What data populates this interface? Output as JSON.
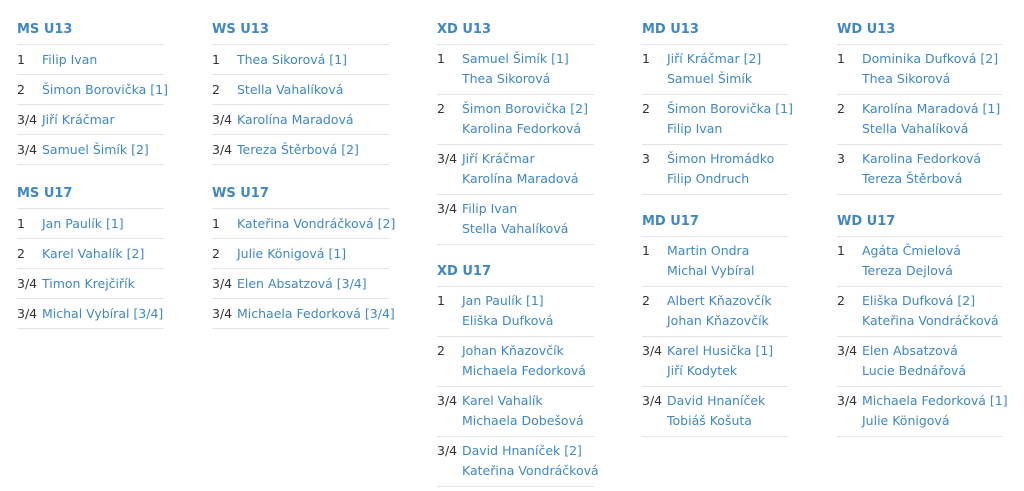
{
  "columns": [
    {
      "sections": [
        {
          "title": "MS U13",
          "rows": [
            {
              "rank": "1",
              "names": [
                "Filip Ivan"
              ]
            },
            {
              "rank": "2",
              "names": [
                "Šimon Borovička [1]"
              ]
            },
            {
              "rank": "3/4",
              "names": [
                "Jiří Kráčmar"
              ]
            },
            {
              "rank": "3/4",
              "names": [
                "Samuel Šimík [2]"
              ]
            }
          ]
        },
        {
          "title": "MS U17",
          "rows": [
            {
              "rank": "1",
              "names": [
                "Jan Paulík [1]"
              ]
            },
            {
              "rank": "2",
              "names": [
                "Karel Vahalík [2]"
              ]
            },
            {
              "rank": "3/4",
              "names": [
                "Timon Krejčiřík"
              ]
            },
            {
              "rank": "3/4",
              "names": [
                "Michal Vybíral [3/4]"
              ]
            }
          ]
        }
      ]
    },
    {
      "sections": [
        {
          "title": "WS U13",
          "rows": [
            {
              "rank": "1",
              "names": [
                "Thea Sikorová [1]"
              ]
            },
            {
              "rank": "2",
              "names": [
                "Stella Vahalíková"
              ]
            },
            {
              "rank": "3/4",
              "names": [
                "Karolína Maradová"
              ]
            },
            {
              "rank": "3/4",
              "names": [
                "Tereza Štěrbová [2]"
              ]
            }
          ]
        },
        {
          "title": "WS U17",
          "rows": [
            {
              "rank": "1",
              "names": [
                "Kateřina Vondráčková [2]"
              ]
            },
            {
              "rank": "2",
              "names": [
                "Julie Königová [1]"
              ]
            },
            {
              "rank": "3/4",
              "names": [
                "Elen Absatzová [3/4]"
              ]
            },
            {
              "rank": "3/4",
              "names": [
                "Michaela Fedorková [3/4]"
              ]
            }
          ]
        }
      ]
    },
    {
      "sections": [
        {
          "title": "XD U13",
          "rows": [
            {
              "rank": "1",
              "names": [
                "Samuel Šimík [1]",
                "Thea Sikorová"
              ]
            },
            {
              "rank": "2",
              "names": [
                "Šimon Borovička [2]",
                "Karolina Fedorková"
              ]
            },
            {
              "rank": "3/4",
              "names": [
                "Jiří Kráčmar",
                "Karolína Maradová"
              ]
            },
            {
              "rank": "3/4",
              "names": [
                "Filip Ivan",
                "Stella Vahalíková"
              ]
            }
          ]
        },
        {
          "title": "XD U17",
          "rows": [
            {
              "rank": "1",
              "names": [
                "Jan Paulík [1]",
                "Eliška Dufková"
              ]
            },
            {
              "rank": "2",
              "names": [
                "Johan Kňazovčík",
                "Michaela Fedorková"
              ]
            },
            {
              "rank": "3/4",
              "names": [
                "Karel Vahalík",
                "Michaela Dobešová"
              ]
            },
            {
              "rank": "3/4",
              "names": [
                "David Hnaníček [2]",
                "Kateřina Vondráčková"
              ]
            }
          ]
        }
      ]
    },
    {
      "sections": [
        {
          "title": "MD U13",
          "rows": [
            {
              "rank": "1",
              "names": [
                "Jiří Kráčmar [2]",
                "Samuel Šimík"
              ]
            },
            {
              "rank": "2",
              "names": [
                "Šimon Borovička [1]",
                "Filip Ivan"
              ]
            },
            {
              "rank": "3",
              "names": [
                "Šimon Hromádko",
                "Filip Ondruch"
              ]
            }
          ]
        },
        {
          "title": "MD U17",
          "rows": [
            {
              "rank": "1",
              "names": [
                "Martin Ondra",
                "Michal Vybíral"
              ]
            },
            {
              "rank": "2",
              "names": [
                "Albert Kňazovčík",
                "Johan Kňazovčík"
              ]
            },
            {
              "rank": "3/4",
              "names": [
                "Karel Husička [1]",
                "Jiří Kodytek"
              ]
            },
            {
              "rank": "3/4",
              "names": [
                "David Hnaníček",
                "Tobiáš Košuta"
              ]
            }
          ]
        }
      ]
    },
    {
      "sections": [
        {
          "title": "WD U13",
          "rows": [
            {
              "rank": "1",
              "names": [
                "Dominika Dufková [2]",
                "Thea Sikorová"
              ]
            },
            {
              "rank": "2",
              "names": [
                "Karolína Maradová [1]",
                "Stella Vahalíková"
              ]
            },
            {
              "rank": "3",
              "names": [
                "Karolina Fedorková",
                "Tereza Štěrbová"
              ]
            }
          ]
        },
        {
          "title": "WD U17",
          "rows": [
            {
              "rank": "1",
              "names": [
                "Agáta Čmielová",
                "Tereza Dejlová"
              ]
            },
            {
              "rank": "2",
              "names": [
                "Eliška Dufková [2]",
                "Kateřina Vondráčková"
              ]
            },
            {
              "rank": "3/4",
              "names": [
                "Elen Absatzová",
                "Lucie Bednářová"
              ]
            },
            {
              "rank": "3/4",
              "names": [
                "Michaela Fedorková [1]",
                "Julie Königová"
              ]
            }
          ]
        }
      ]
    }
  ]
}
